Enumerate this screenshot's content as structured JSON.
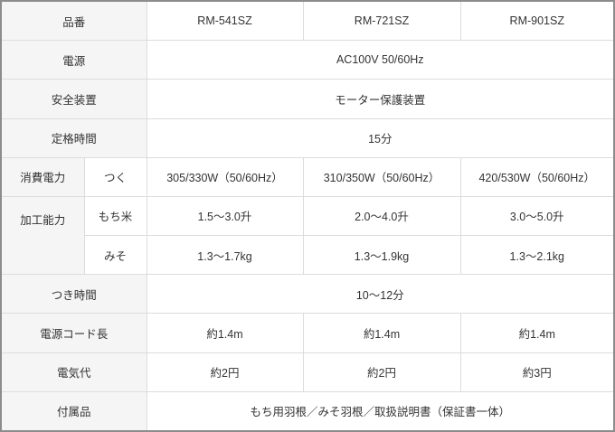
{
  "models": [
    "RM-541SZ",
    "RM-721SZ",
    "RM-901SZ"
  ],
  "header_label": "品番",
  "power_source": {
    "label": "電源",
    "value": "AC100V 50/60Hz"
  },
  "safety": {
    "label": "安全装置",
    "value": "モーター保護装置"
  },
  "rated_time": {
    "label": "定格時間",
    "value": "15分"
  },
  "power_consumption": {
    "label": "消費電力",
    "sub": "つく",
    "values": [
      "305/330W（50/60Hz）",
      "310/350W（50/60Hz）",
      "420/530W（50/60Hz）"
    ]
  },
  "capacity": {
    "label": "加工能力",
    "mochi": {
      "sub": "もち米",
      "values": [
        "1.5〜3.0升",
        "2.0〜4.0升",
        "3.0〜5.0升"
      ]
    },
    "miso": {
      "sub": "みそ",
      "values": [
        "1.3〜1.7kg",
        "1.3〜1.9kg",
        "1.3〜2.1kg"
      ]
    }
  },
  "pound_time": {
    "label": "つき時間",
    "value": "10〜12分"
  },
  "cord": {
    "label": "電源コード長",
    "values": [
      "約1.4m",
      "約1.4m",
      "約1.4m"
    ]
  },
  "electricity": {
    "label": "電気代",
    "values": [
      "約2円",
      "約2円",
      "約3円"
    ]
  },
  "accessories": {
    "label": "付属品",
    "value": "もち用羽根／みそ羽根／取扱説明書（保証書一体）"
  }
}
